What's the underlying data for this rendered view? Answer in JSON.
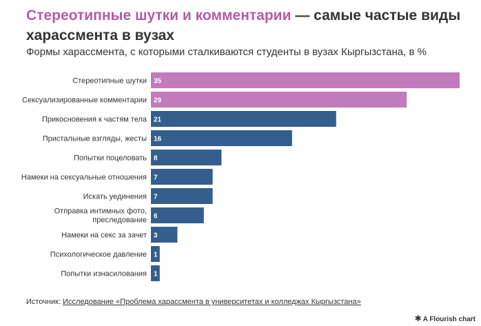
{
  "header": {
    "title_accent": "Стереотипные шутки и комментарии",
    "title_rest": " — самые частые виды харассмента в вузах",
    "subtitle": "Формы харассмента, с которыми сталкиваются студенты в вузах Кыргызстана, в %"
  },
  "footer": {
    "source_label": "Источник: ",
    "source_link": "Исследование «Проблема харассмента в университетах и колледжах Кыргызстана»",
    "credit": "A Flourish chart"
  },
  "colors": {
    "accent": "#c17abc",
    "primary": "#335e8e",
    "title_accent": "#b65aa8"
  },
  "icons": {
    "credit_icon": "asterisk-icon"
  },
  "chart_data": {
    "type": "bar",
    "orientation": "horizontal",
    "categories": [
      "Стереотипные шутки",
      "Сексуализированные комментарии",
      "Прикосновения к частям тела",
      "Пристальные взгляды, жесты",
      "Попытки поцеловать",
      "Намеки на сексуальные отношения",
      "Искать уединения",
      "Отправка интимных фото, преследование",
      "Намеки на секс за зачет",
      "Психологическое давление",
      "Попытки изнасилования"
    ],
    "values": [
      35,
      29,
      21,
      16,
      8,
      7,
      7,
      6,
      3,
      1,
      1
    ],
    "highlighted": [
      true,
      true,
      false,
      false,
      false,
      false,
      false,
      false,
      false,
      false,
      false
    ],
    "xlim": [
      0,
      35
    ],
    "grid": false,
    "legend": "none"
  }
}
